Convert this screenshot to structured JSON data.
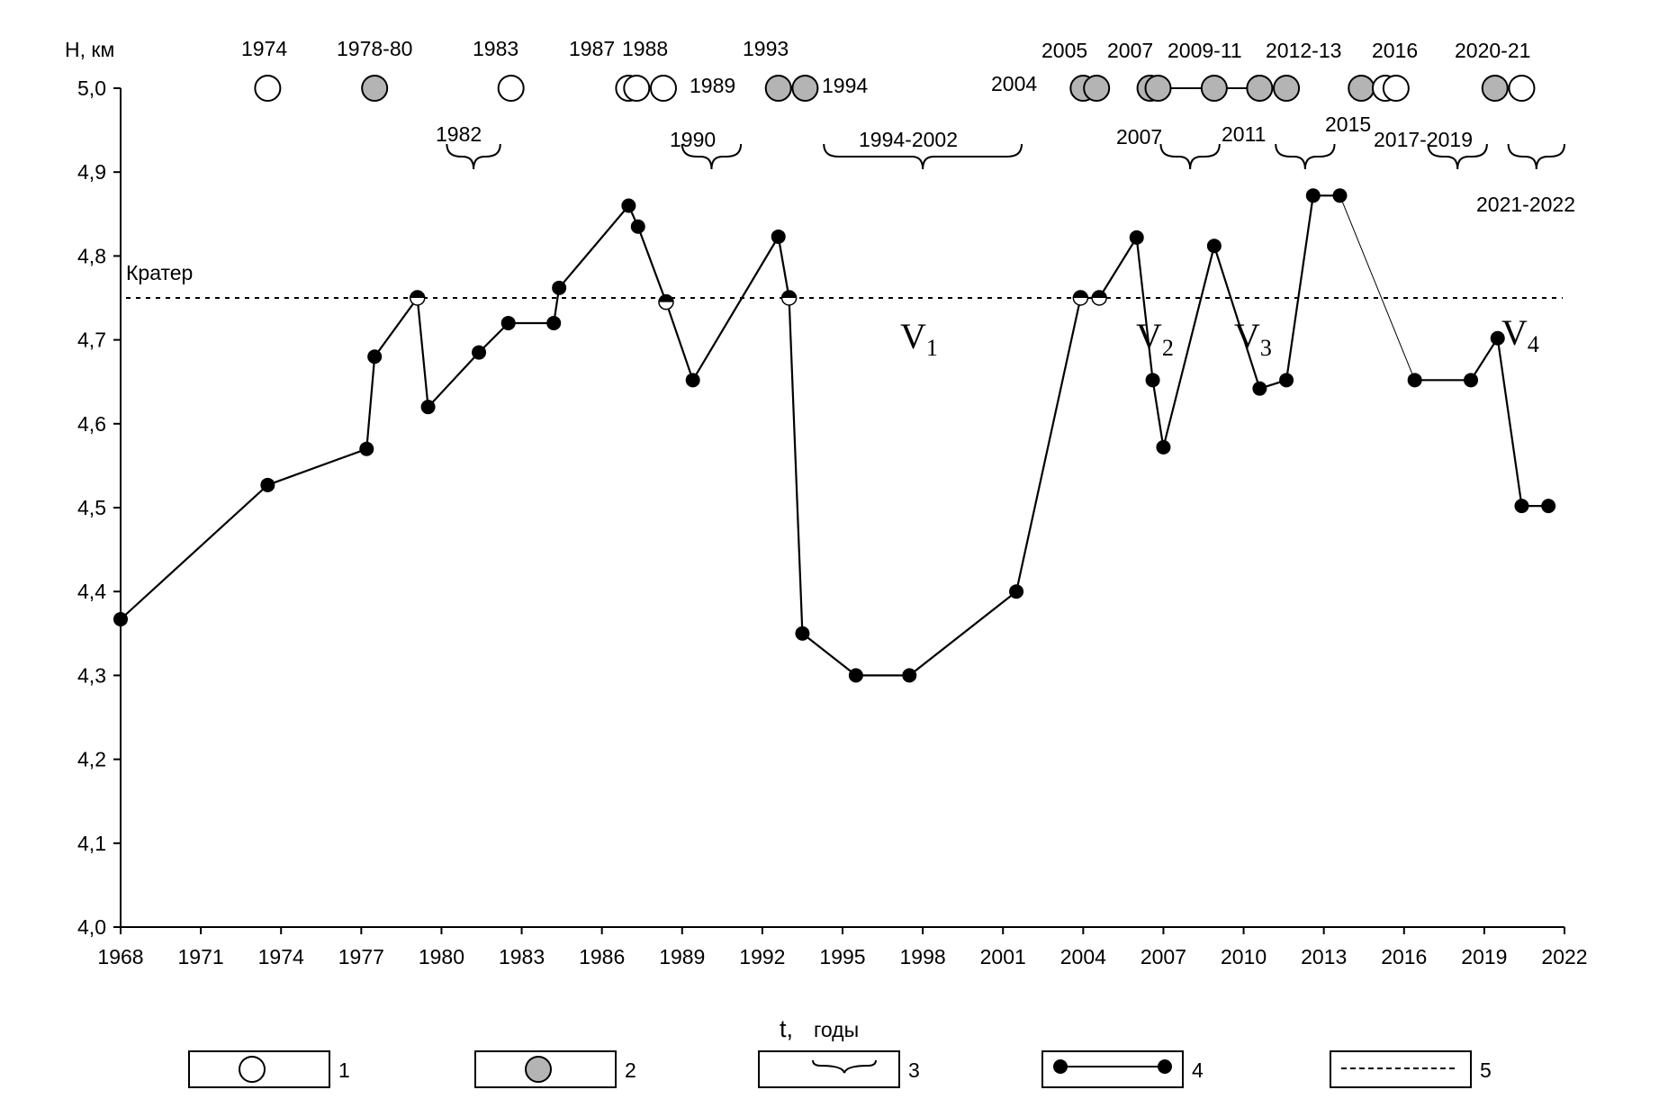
{
  "chart_data": {
    "type": "line",
    "y_axis_title": "Н, км",
    "x_axis_title_main": "t,",
    "x_axis_title_unit": "годы",
    "xlim": [
      1968,
      2022
    ],
    "ylim": [
      4.0,
      5.0
    ],
    "x_ticks": [
      1968,
      1971,
      1974,
      1977,
      1980,
      1983,
      1986,
      1989,
      1992,
      1995,
      1998,
      2001,
      2004,
      2007,
      2010,
      2013,
      2016,
      2019,
      2022
    ],
    "y_ticks": [
      {
        "value": 4.0,
        "label": "4,0"
      },
      {
        "value": 4.1,
        "label": "4,1"
      },
      {
        "value": 4.2,
        "label": "4,2"
      },
      {
        "value": 4.3,
        "label": "4,3"
      },
      {
        "value": 4.4,
        "label": "4,4"
      },
      {
        "value": 4.5,
        "label": "4,5"
      },
      {
        "value": 4.6,
        "label": "4,6"
      },
      {
        "value": 4.7,
        "label": "4,7"
      },
      {
        "value": 4.8,
        "label": "4,8"
      },
      {
        "value": 4.9,
        "label": "4,9"
      },
      {
        "value": 5.0,
        "label": "5,0"
      }
    ],
    "crater": {
      "label": "Кратер",
      "value": 4.75
    },
    "series": [
      {
        "name": "bottom-level",
        "segments": [
          [
            [
              1968.0,
              4.367
            ],
            [
              1973.5,
              4.527
            ],
            [
              1977.2,
              4.57
            ],
            [
              1977.5,
              4.68
            ],
            [
              1979.1,
              4.75
            ],
            [
              1979.5,
              4.62
            ],
            [
              1981.4,
              4.685
            ],
            [
              1982.5,
              4.72
            ],
            [
              1984.2,
              4.72
            ],
            [
              1984.4,
              4.762
            ],
            [
              1987.0,
              4.86
            ],
            [
              1987.35,
              4.835
            ],
            [
              1988.4,
              4.745
            ],
            [
              1989.4,
              4.652
            ],
            [
              1992.6,
              4.823
            ],
            [
              1993.0,
              4.75
            ],
            [
              1993.5,
              4.35
            ],
            [
              1995.5,
              4.3
            ],
            [
              1997.5,
              4.3
            ],
            [
              2001.5,
              4.4
            ],
            [
              2003.9,
              4.75
            ],
            [
              2004.6,
              4.75
            ],
            [
              2006.0,
              4.822
            ],
            [
              2006.6,
              4.652
            ],
            [
              2007.0,
              4.572
            ],
            [
              2008.9,
              4.812
            ],
            [
              2010.6,
              4.642
            ],
            [
              2011.6,
              4.652
            ],
            [
              2012.6,
              4.872
            ],
            [
              2013.6,
              4.872
            ]
          ],
          [
            [
              2016.4,
              4.652
            ],
            [
              2018.5,
              4.652
            ],
            [
              2019.5,
              4.702
            ],
            [
              2020.4,
              4.502
            ],
            [
              2021.4,
              4.502
            ]
          ]
        ],
        "thin_connector": [
          [
            2013.6,
            4.872
          ],
          [
            2016.4,
            4.652
          ]
        ],
        "half_points": [
          [
            1979.1,
            4.75
          ],
          [
            1988.4,
            4.745
          ],
          [
            1993.0,
            4.75
          ],
          [
            2003.9,
            4.75
          ],
          [
            2004.6,
            4.75
          ]
        ]
      }
    ],
    "events": [
      {
        "x": 1973.5,
        "type": "open"
      },
      {
        "x": 1977.5,
        "type": "gray"
      },
      {
        "x": 1982.6,
        "type": "open"
      },
      {
        "x": 1987.0,
        "type": "open"
      },
      {
        "x": 1987.3,
        "type": "open"
      },
      {
        "x": 1988.3,
        "type": "open"
      },
      {
        "x": 1992.6,
        "type": "gray"
      },
      {
        "x": 1993.6,
        "type": "gray"
      },
      {
        "x": 2004.0,
        "type": "gray"
      },
      {
        "x": 2004.5,
        "type": "gray"
      },
      {
        "x": 2006.5,
        "type": "gray"
      },
      {
        "x": 2006.8,
        "type": "gray"
      },
      {
        "x": 2008.9,
        "type": "gray"
      },
      {
        "x": 2010.6,
        "type": "gray"
      },
      {
        "x": 2011.6,
        "type": "gray"
      },
      {
        "x": 2014.4,
        "type": "gray"
      },
      {
        "x": 2015.3,
        "type": "open"
      },
      {
        "x": 2015.7,
        "type": "open"
      },
      {
        "x": 2019.4,
        "type": "gray"
      },
      {
        "x": 2020.4,
        "type": "open"
      }
    ],
    "event_connector": [
      2006.8,
      2008.9,
      2010.6,
      2011.6
    ],
    "event_labels": [
      "1974",
      "1978-80",
      "1983",
      "1987",
      "1988",
      "1993",
      "1989",
      "1994",
      "2005",
      "2004",
      "2007",
      "2009-11",
      "2012-13",
      "2016",
      "2020-21"
    ],
    "brace_labels": [
      "1982",
      "1990",
      "1994-2002",
      "2007",
      "2011",
      "2015",
      "2017-2019",
      "2021-2022"
    ],
    "braces": [
      {
        "from": 1980.2,
        "to": 1982.2
      },
      {
        "from": 1989.0,
        "to": 1991.2
      },
      {
        "from": 1994.3,
        "to": 2001.7
      },
      {
        "from": 2006.9,
        "to": 2009.1
      },
      {
        "from": 2011.2,
        "to": 2013.4
      },
      {
        "from": 2016.9,
        "to": 2019.1
      },
      {
        "from": 2019.9,
        "to": 2022.0
      }
    ],
    "region_labels": [
      {
        "main": "V",
        "sub": "1"
      },
      {
        "main": "V",
        "sub": "2"
      },
      {
        "main": "V",
        "sub": "3"
      },
      {
        "main": "V",
        "sub": "4"
      }
    ],
    "legend": [
      "1",
      "2",
      "3",
      "4",
      "5"
    ]
  }
}
